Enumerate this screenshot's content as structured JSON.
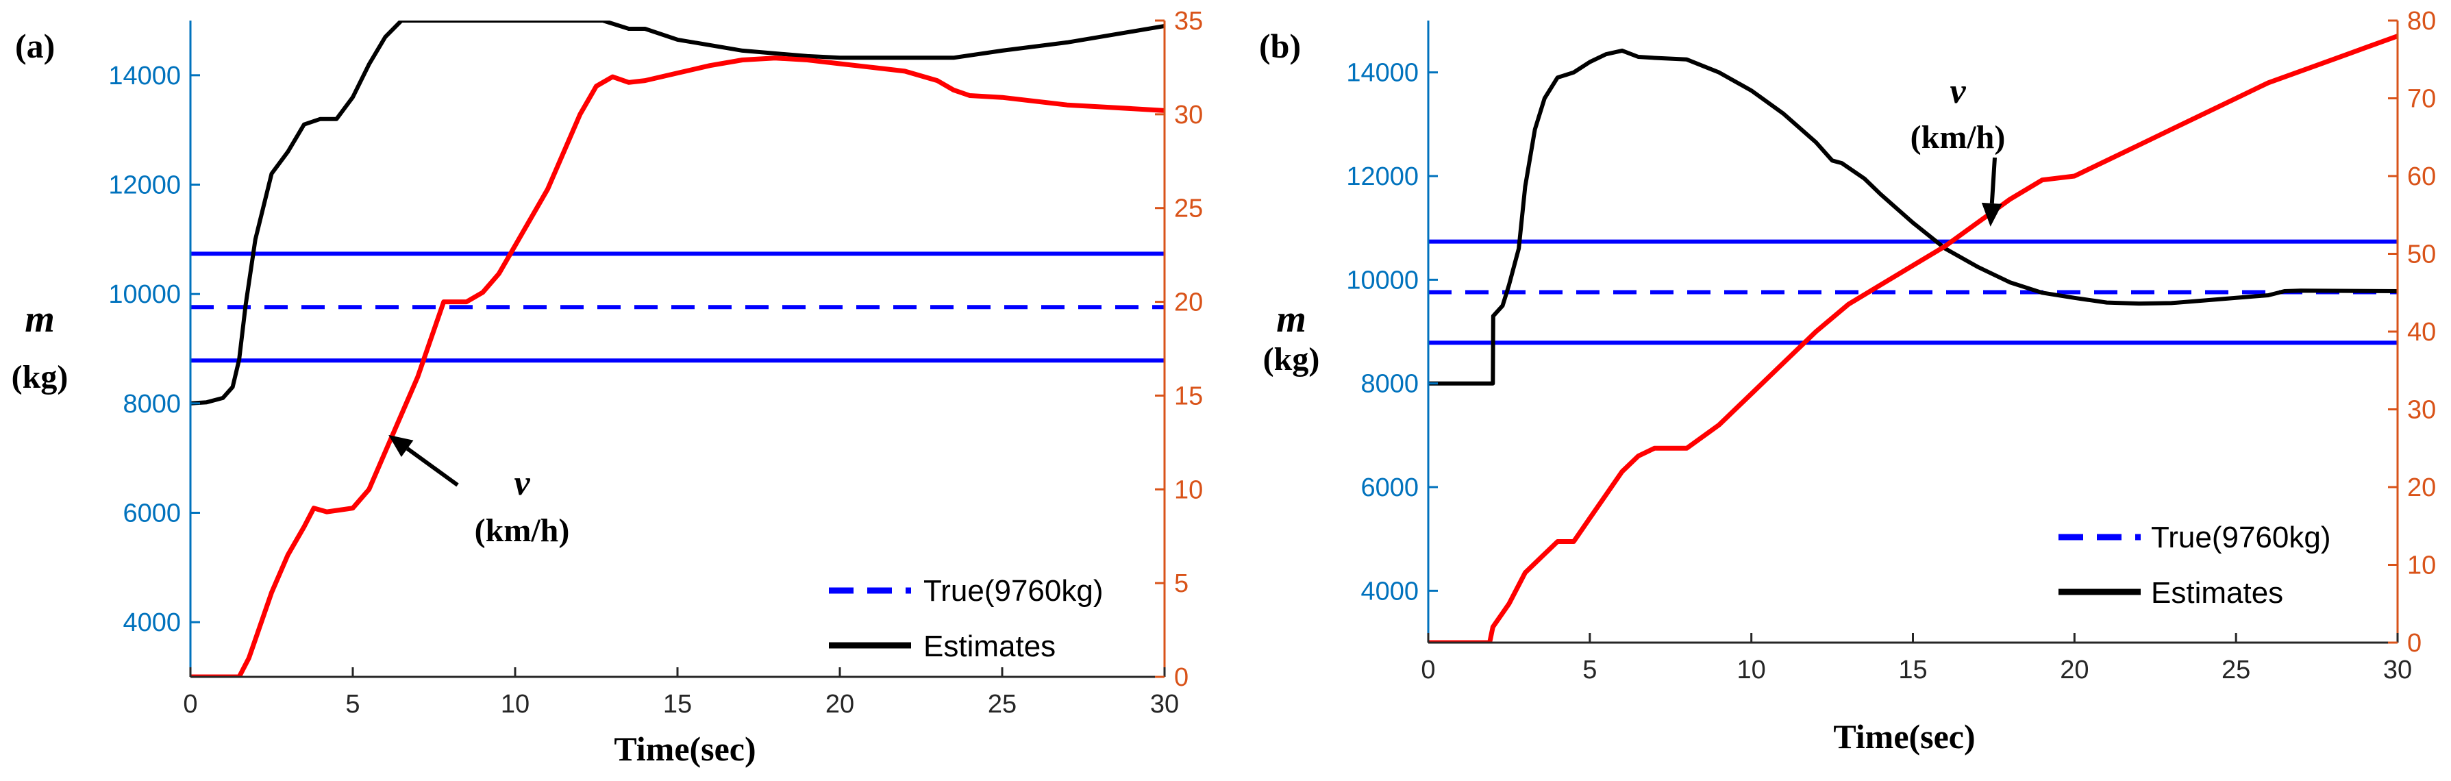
{
  "colors": {
    "mass_axis": "#0072BD",
    "speed_axis": "#D95319",
    "true_line": "#0000FF",
    "estimate_line": "#000000",
    "speed_line": "#FF0000",
    "axis_frame": "#262626"
  },
  "chart_data": [
    {
      "type": "line",
      "panel_label": "(a)",
      "xlabel": "Time(sec)",
      "ylabel_left": [
        "m",
        "(kg)"
      ],
      "xlim": [
        0,
        30
      ],
      "ylim_left": [
        3000,
        15000
      ],
      "ylim_right": [
        0,
        35
      ],
      "xticks": [
        "0",
        "5",
        "10",
        "15",
        "20",
        "25",
        "30"
      ],
      "yticks_left": [
        "4000",
        "6000",
        "8000",
        "10000",
        "12000",
        "14000"
      ],
      "yticks_right": [
        "0",
        "5",
        "10",
        "15",
        "20",
        "25",
        "30",
        "35"
      ],
      "yticks_left_values": [
        4000,
        6000,
        8000,
        10000,
        12000,
        14000
      ],
      "yticks_right_values": [
        0,
        5,
        10,
        15,
        20,
        25,
        30,
        35
      ],
      "annotation": {
        "line1": "v",
        "line2": "(km/h)",
        "target": [
          6.1,
          12.9
        ]
      },
      "legend": {
        "true_label": "True(9760kg)",
        "estimate_label": "Estimates",
        "placement": "bottom-right"
      },
      "series": [
        {
          "name": "True(9760kg)",
          "axis": "left",
          "style": "dashed",
          "x": [
            0,
            30
          ],
          "values": [
            9760,
            9760
          ]
        },
        {
          "name": "Upper bound",
          "axis": "left",
          "style": "solid",
          "x": [
            0,
            30
          ],
          "values": [
            10736,
            10736
          ]
        },
        {
          "name": "Lower bound",
          "axis": "left",
          "style": "solid",
          "x": [
            0,
            30
          ],
          "values": [
            8784,
            8784
          ]
        },
        {
          "name": "Estimates",
          "axis": "left",
          "style": "solid",
          "x": [
            0,
            0.5,
            1,
            1.3,
            1.5,
            1.7,
            2,
            2.5,
            3,
            3.5,
            4,
            4.5,
            5,
            5.5,
            6,
            6.5,
            7,
            8,
            9,
            10,
            11,
            12,
            12.7,
            13.5,
            14,
            15,
            17,
            19,
            20,
            22,
            23.5,
            25,
            27,
            29,
            30
          ],
          "values": [
            8000,
            8020,
            8100,
            8300,
            8800,
            9800,
            11000,
            12200,
            12600,
            13100,
            13200,
            13200,
            13600,
            14200,
            14700,
            15000,
            15000,
            15000,
            15000,
            15000,
            15000,
            15000,
            15000,
            14850,
            14850,
            14650,
            14450,
            14350,
            14320,
            14320,
            14320,
            14450,
            14600,
            14800,
            14900
          ]
        },
        {
          "name": "v",
          "axis": "right",
          "style": "solid",
          "x": [
            0,
            1.5,
            1.8,
            2,
            2.5,
            3,
            3.5,
            3.8,
            4.2,
            5,
            5.5,
            6,
            6.5,
            7,
            7.5,
            7.8,
            8,
            8.5,
            9,
            9.5,
            10,
            10.5,
            11,
            11.5,
            12,
            12.5,
            13,
            13.5,
            14,
            15,
            16,
            17,
            18,
            19,
            20,
            21,
            22,
            23,
            23.5,
            24,
            25,
            26,
            27,
            28,
            29,
            30
          ],
          "values": [
            0,
            0,
            1,
            2,
            4.5,
            6.5,
            8,
            9,
            8.8,
            9,
            10,
            12,
            14,
            16,
            18.5,
            20,
            20,
            20,
            20.5,
            21.5,
            23,
            24.5,
            26,
            28,
            30,
            31.5,
            32,
            31.7,
            31.8,
            32.2,
            32.6,
            32.9,
            33,
            32.9,
            32.7,
            32.5,
            32.3,
            31.8,
            31.3,
            31.0,
            30.9,
            30.7,
            30.5,
            30.4,
            30.3,
            30.2
          ]
        }
      ]
    },
    {
      "type": "line",
      "panel_label": "(b)",
      "xlabel": "Time(sec)",
      "ylabel_left": [
        "m",
        "(kg)"
      ],
      "xlim": [
        0,
        30
      ],
      "ylim_left": [
        3000,
        15000
      ],
      "ylim_right": [
        0,
        80
      ],
      "xticks": [
        "0",
        "5",
        "10",
        "15",
        "20",
        "25",
        "30"
      ],
      "yticks_left": [
        "4000",
        "6000",
        "8000",
        "10000",
        "12000",
        "14000"
      ],
      "yticks_right": [
        "0",
        "10",
        "20",
        "30",
        "40",
        "50",
        "60",
        "70",
        "80"
      ],
      "yticks_left_values": [
        4000,
        6000,
        8000,
        10000,
        12000,
        14000
      ],
      "yticks_right_values": [
        0,
        10,
        20,
        30,
        40,
        50,
        60,
        70,
        80
      ],
      "annotation": {
        "line1": "v",
        "line2": "(km/h)",
        "target": [
          17.4,
          53.5
        ]
      },
      "legend": {
        "true_label": "True(9760kg)",
        "estimate_label": "Estimates",
        "placement": "bottom-right"
      },
      "series": [
        {
          "name": "True(9760kg)",
          "axis": "left",
          "style": "dashed",
          "x": [
            0,
            30
          ],
          "values": [
            9760,
            9760
          ]
        },
        {
          "name": "Upper bound",
          "axis": "left",
          "style": "solid",
          "x": [
            0,
            30
          ],
          "values": [
            10736,
            10736
          ]
        },
        {
          "name": "Lower bound",
          "axis": "left",
          "style": "solid",
          "x": [
            0,
            30
          ],
          "values": [
            8784,
            8784
          ]
        },
        {
          "name": "Estimates",
          "axis": "left",
          "style": "solid",
          "x": [
            0,
            2,
            2.01,
            2.3,
            2.5,
            2.8,
            3,
            3.3,
            3.6,
            4,
            4.5,
            5,
            5.5,
            6,
            6.5,
            7,
            8,
            9,
            10,
            11,
            12,
            12.5,
            12.8,
            13.5,
            14,
            15,
            16,
            17,
            18,
            19,
            20,
            21,
            22,
            23,
            24,
            25,
            26,
            26.5,
            27,
            30
          ],
          "values": [
            8000,
            8000,
            9300,
            9500,
            9900,
            10600,
            11800,
            12900,
            13500,
            13900,
            14000,
            14200,
            14350,
            14420,
            14300,
            14280,
            14250,
            14000,
            13650,
            13200,
            12650,
            12300,
            12250,
            11950,
            11650,
            11100,
            10600,
            10250,
            9950,
            9750,
            9650,
            9560,
            9540,
            9550,
            9600,
            9650,
            9700,
            9780,
            9790,
            9780
          ]
        },
        {
          "name": "v",
          "axis": "right",
          "style": "solid",
          "x": [
            0,
            1.9,
            2,
            2.5,
            3,
            3.5,
            4,
            4.5,
            5,
            5.5,
            6,
            6.5,
            7,
            7.5,
            8,
            9,
            10,
            11,
            12,
            13,
            14,
            15,
            16,
            17,
            18,
            19,
            20,
            21,
            22,
            23,
            24,
            25,
            26,
            27,
            28,
            29,
            30
          ],
          "values": [
            0,
            0,
            2,
            5,
            9,
            11,
            13,
            13,
            16,
            19,
            22,
            24,
            25,
            25,
            25,
            28,
            32,
            36,
            40,
            43.5,
            46,
            48.5,
            51,
            54,
            57,
            59.5,
            60,
            62,
            64,
            66,
            68,
            70,
            72,
            73.5,
            75,
            76.5,
            78
          ]
        }
      ]
    }
  ]
}
